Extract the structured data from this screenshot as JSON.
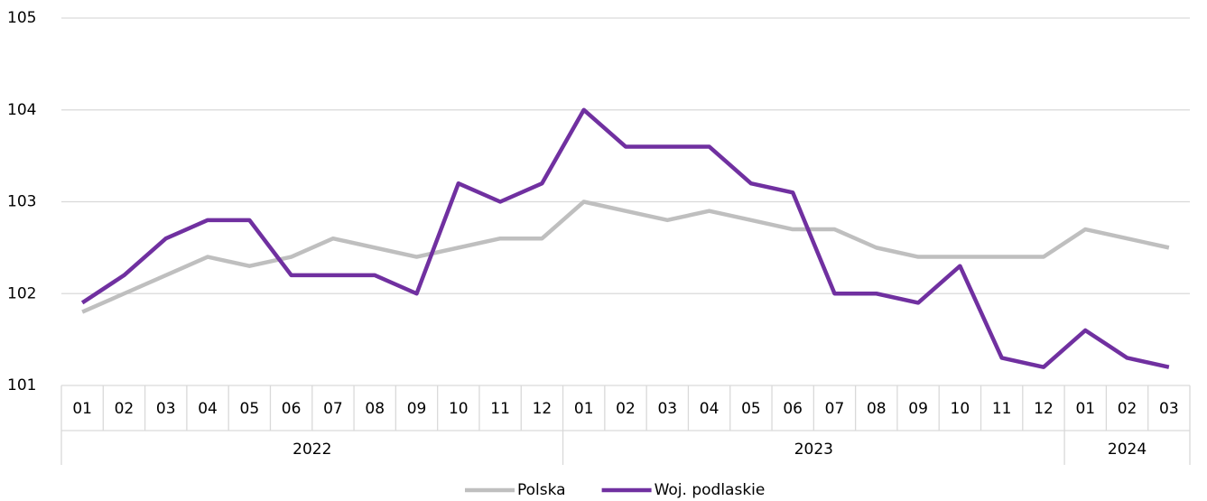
{
  "chart_data": {
    "type": "line",
    "categories": [
      "01",
      "02",
      "03",
      "04",
      "05",
      "06",
      "07",
      "08",
      "09",
      "10",
      "11",
      "12",
      "01",
      "02",
      "03",
      "04",
      "05",
      "06",
      "07",
      "08",
      "09",
      "10",
      "11",
      "12",
      "01",
      "02",
      "03"
    ],
    "years": [
      "2022",
      "2023",
      "2024"
    ],
    "series": [
      {
        "name": "Polska",
        "color": "#bfbfbf",
        "values": [
          101.8,
          102.0,
          102.2,
          102.4,
          102.3,
          102.4,
          102.6,
          102.5,
          102.4,
          102.5,
          102.6,
          102.6,
          103.0,
          102.9,
          102.8,
          102.9,
          102.8,
          102.7,
          102.7,
          102.5,
          102.4,
          102.4,
          102.4,
          102.4,
          102.7,
          102.6,
          102.5
        ]
      },
      {
        "name": "Woj. podlaskie",
        "color": "#7030a0",
        "values": [
          101.9,
          102.2,
          102.6,
          102.8,
          102.8,
          102.2,
          102.2,
          102.2,
          102.0,
          103.2,
          103.0,
          103.2,
          104.0,
          103.6,
          103.6,
          103.6,
          103.2,
          103.1,
          102.0,
          102.0,
          101.9,
          102.3,
          101.3,
          101.2,
          101.6,
          101.3,
          101.2
        ]
      }
    ],
    "ylim": [
      101,
      105
    ],
    "yticks": [
      101,
      102,
      103,
      104,
      105
    ],
    "grid": true,
    "legend": "bottom"
  }
}
